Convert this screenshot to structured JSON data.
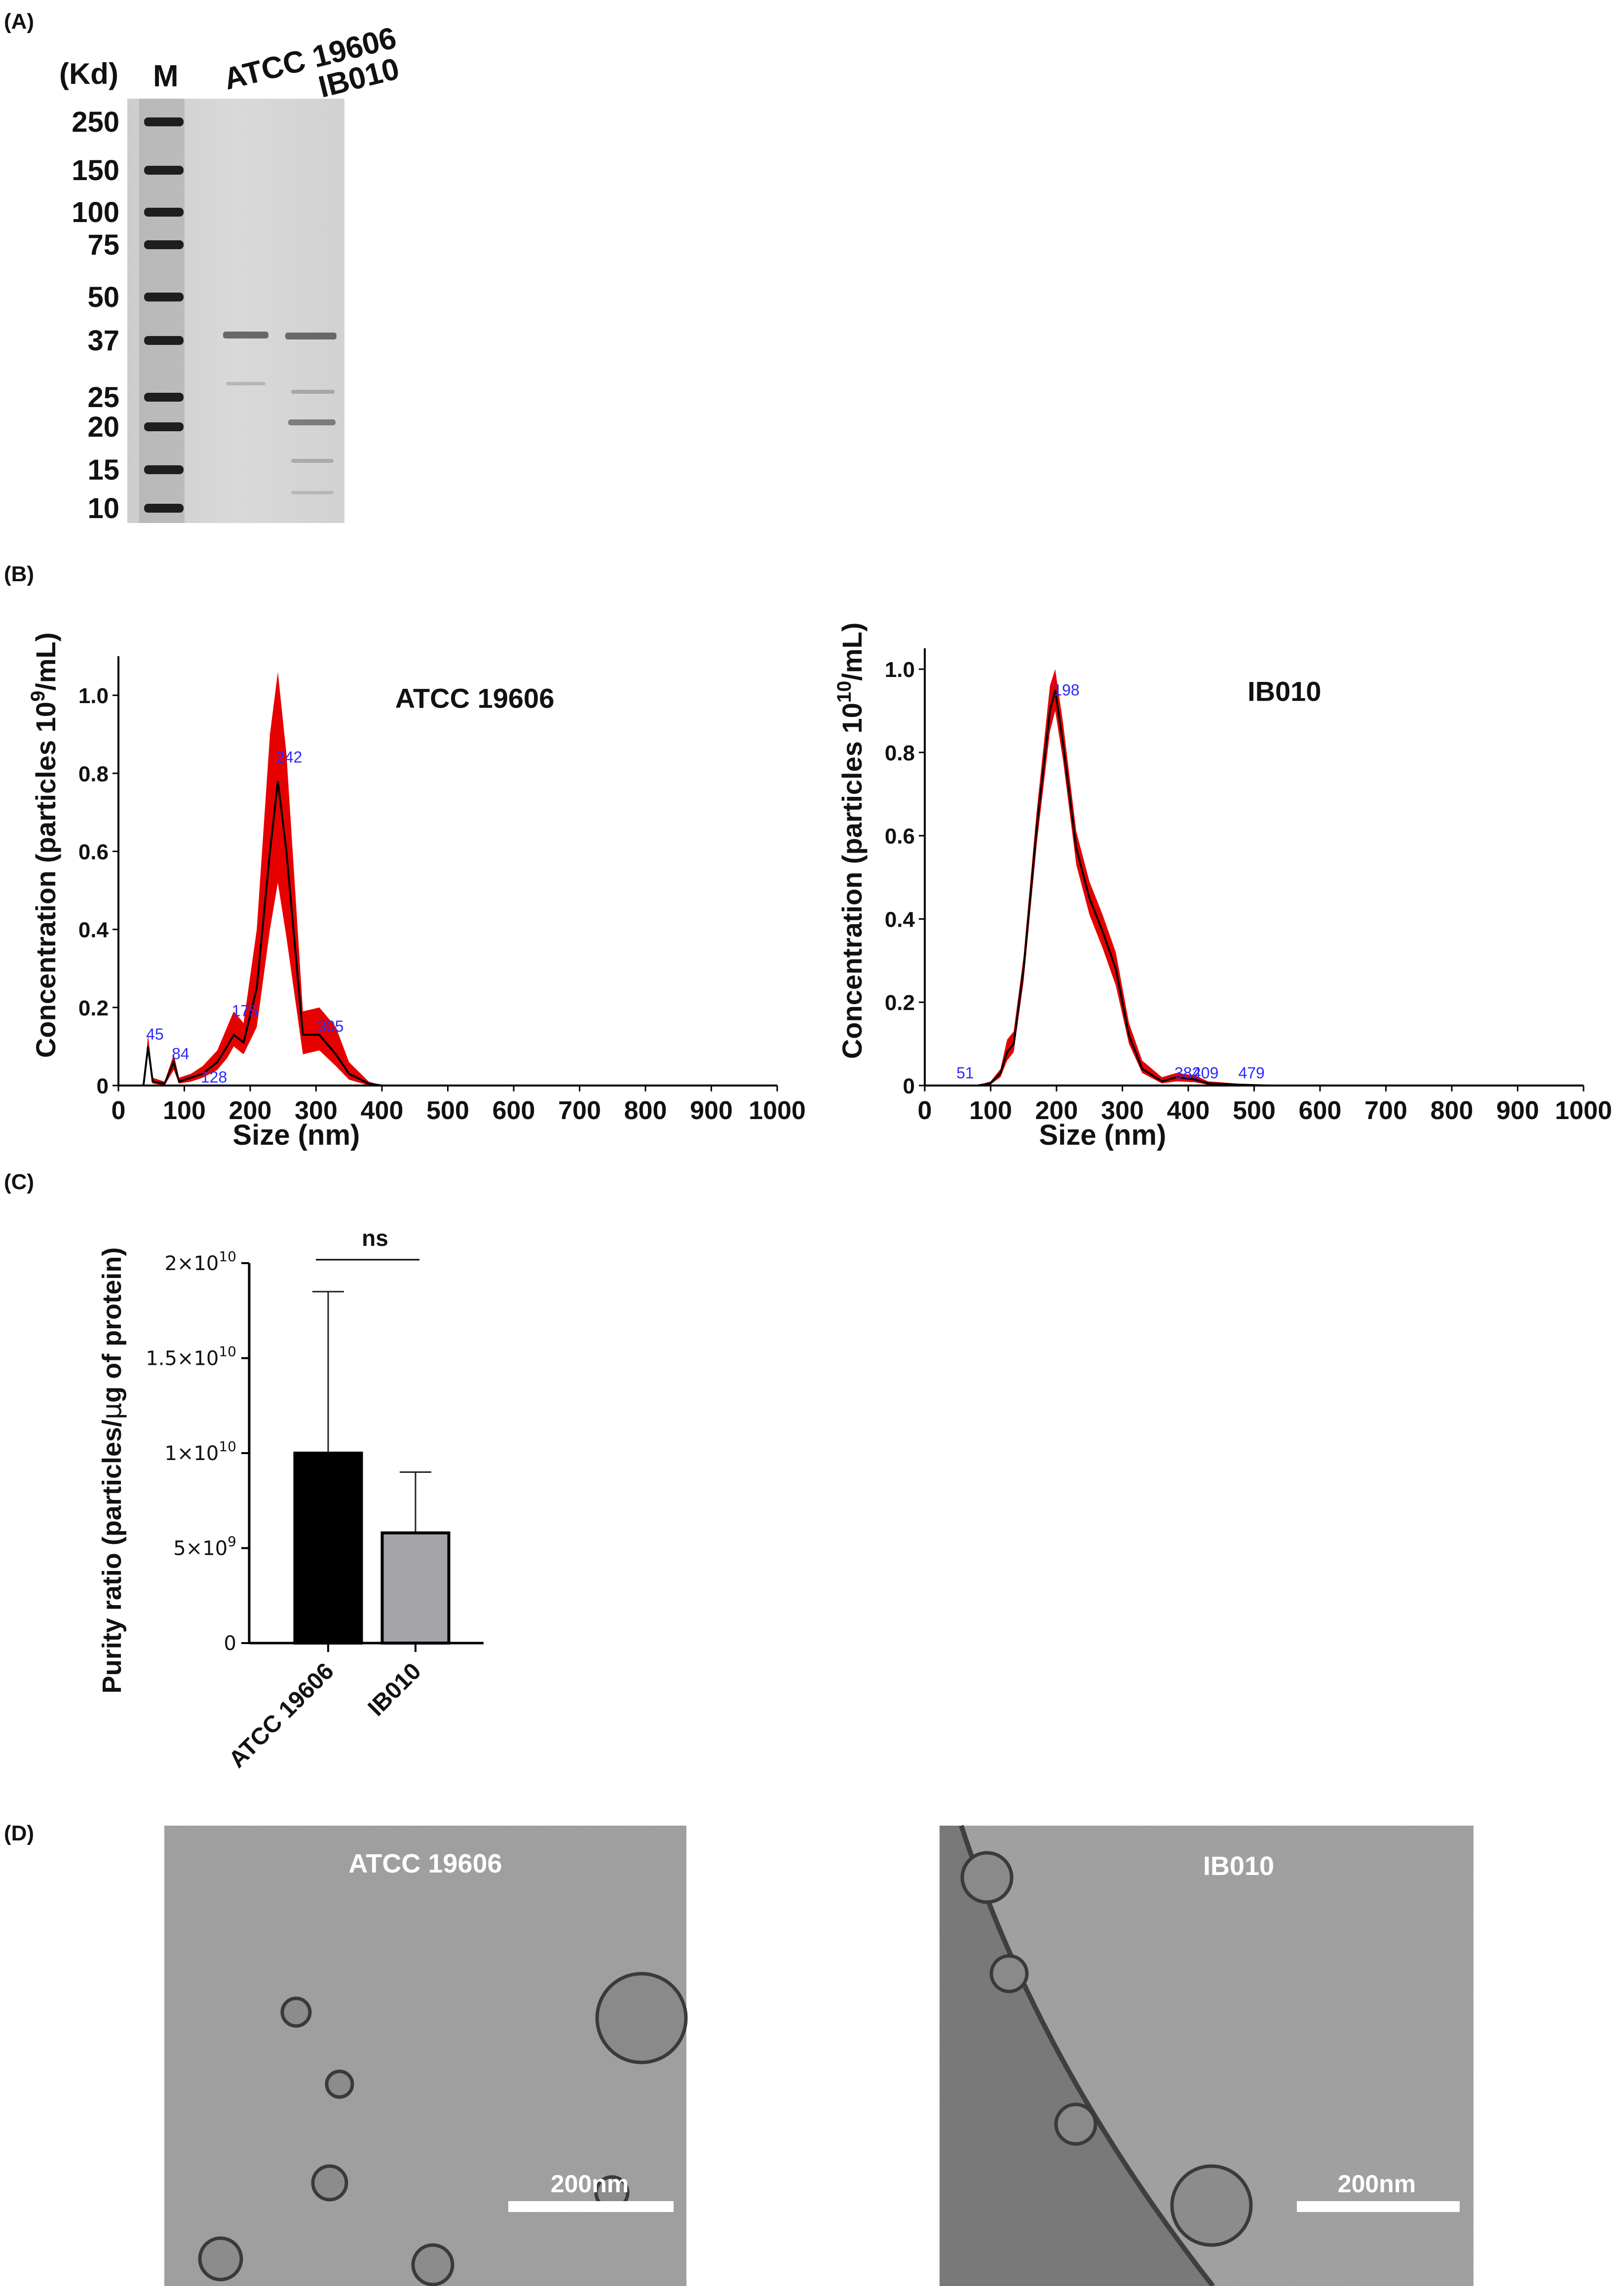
{
  "panels": {
    "a": "(A)",
    "b": "(B)",
    "c": "(C)",
    "d": "(D)"
  },
  "gel": {
    "unit_label": "(Kd)",
    "marker_lane": "M",
    "lane_labels": [
      "ATCC 19606",
      "IB010"
    ],
    "marker_kd": [
      "250",
      "150",
      "100",
      "75",
      "50",
      "37",
      "25",
      "20",
      "15",
      "10"
    ]
  },
  "colors": {
    "band_red": "#e60000",
    "black_bar": "#000000",
    "grey_bar": "#a3a3a8",
    "peak_label": "#2a2aff"
  },
  "nta": [
    {
      "name": "ATCC 19606",
      "ylabel_prefix": "Concentration (particles 10",
      "ylabel_exp": "9",
      "ylabel_suffix": "/mL)",
      "xlabel": "Size (nm)",
      "xticks": [
        "0",
        "100",
        "200",
        "300",
        "400",
        "500",
        "600",
        "700",
        "800",
        "900",
        "1000"
      ],
      "yticks": [
        "0",
        "0.2",
        "0.4",
        "0.6",
        "0.8",
        "1.0"
      ],
      "peak_labels": [
        "45",
        "84",
        "128",
        "175",
        "242",
        "305"
      ],
      "chart_data": {
        "type": "area",
        "series": "mean ± error band",
        "x_range": [
          0,
          1000
        ],
        "y_range": [
          0,
          1.1
        ],
        "x": [
          0,
          38,
          45,
          52,
          70,
          84,
          92,
          110,
          128,
          150,
          165,
          175,
          190,
          210,
          230,
          242,
          255,
          280,
          305,
          330,
          350,
          380,
          400,
          1000
        ],
        "mean": [
          0,
          0,
          0.1,
          0.01,
          0.005,
          0.06,
          0.01,
          0.02,
          0.03,
          0.06,
          0.1,
          0.13,
          0.11,
          0.25,
          0.6,
          0.78,
          0.6,
          0.13,
          0.13,
          0.08,
          0.03,
          0.005,
          0,
          0
        ],
        "upper": [
          0,
          0,
          0.13,
          0.02,
          0.01,
          0.08,
          0.02,
          0.03,
          0.05,
          0.09,
          0.15,
          0.19,
          0.16,
          0.4,
          0.9,
          1.06,
          0.85,
          0.19,
          0.2,
          0.15,
          0.06,
          0.01,
          0,
          0
        ],
        "lower": [
          0,
          0,
          0.08,
          0.005,
          0,
          0.04,
          0.005,
          0.01,
          0.02,
          0.04,
          0.07,
          0.1,
          0.08,
          0.15,
          0.4,
          0.52,
          0.38,
          0.08,
          0.09,
          0.05,
          0.015,
          0,
          0,
          0
        ]
      }
    },
    {
      "name": "IB010",
      "ylabel_prefix": "Concentration (particles 10",
      "ylabel_exp": "10",
      "ylabel_suffix": "/mL)",
      "xlabel": "Size (nm)",
      "xticks": [
        "0",
        "100",
        "200",
        "300",
        "400",
        "500",
        "600",
        "700",
        "800",
        "900",
        "1000"
      ],
      "yticks": [
        "0",
        "0.2",
        "0.4",
        "0.6",
        "0.8",
        "1.0"
      ],
      "peak_labels": [
        "51",
        "198",
        "382",
        "409",
        "479"
      ],
      "chart_data": {
        "type": "area",
        "series": "mean ± error band",
        "x_range": [
          0,
          1000
        ],
        "y_range": [
          0,
          1.05
        ],
        "x": [
          0,
          80,
          100,
          115,
          125,
          135,
          150,
          170,
          190,
          198,
          210,
          230,
          250,
          270,
          290,
          310,
          330,
          360,
          382,
          409,
          430,
          479,
          520,
          1000
        ],
        "mean": [
          0,
          0,
          0.005,
          0.03,
          0.08,
          0.1,
          0.28,
          0.62,
          0.9,
          0.95,
          0.82,
          0.57,
          0.45,
          0.37,
          0.28,
          0.12,
          0.04,
          0.01,
          0.02,
          0.015,
          0.005,
          0.002,
          0,
          0
        ],
        "upper": [
          0,
          0,
          0.01,
          0.04,
          0.11,
          0.13,
          0.31,
          0.66,
          0.96,
          1.0,
          0.87,
          0.61,
          0.49,
          0.41,
          0.32,
          0.15,
          0.06,
          0.02,
          0.03,
          0.025,
          0.01,
          0.004,
          0,
          0
        ],
        "lower": [
          0,
          0,
          0.003,
          0.02,
          0.06,
          0.08,
          0.25,
          0.58,
          0.85,
          0.9,
          0.78,
          0.53,
          0.41,
          0.33,
          0.24,
          0.1,
          0.03,
          0.005,
          0.01,
          0.008,
          0.002,
          0,
          0,
          0
        ]
      }
    }
  ],
  "purity": {
    "ylabel_prefix": "Purity ratio (particles/",
    "ylabel_mu": "μ",
    "ylabel_suffix": "g of protein)",
    "significance": "ns",
    "yticks": [
      {
        "base": "0",
        "exp": ""
      },
      {
        "base": "5×10",
        "exp": "9"
      },
      {
        "base": "1×10",
        "exp": "10"
      },
      {
        "base": "1.5×10",
        "exp": "10"
      },
      {
        "base": "2×10",
        "exp": "10"
      }
    ],
    "chart_data": {
      "type": "bar",
      "categories": [
        "ATCC 19606",
        "IB010"
      ],
      "values": [
        10000000000.0,
        5800000000.0
      ],
      "error_upper": [
        18500000000.0,
        9000000000.0
      ],
      "ylim": [
        0,
        20000000000.0
      ],
      "xlabel": "",
      "ylabel": "Purity ratio (particles/μg of protein)"
    }
  },
  "tem": [
    {
      "label": "ATCC 19606",
      "scale_bar": "200nm"
    },
    {
      "label": "IB010",
      "scale_bar": "200nm"
    }
  ]
}
